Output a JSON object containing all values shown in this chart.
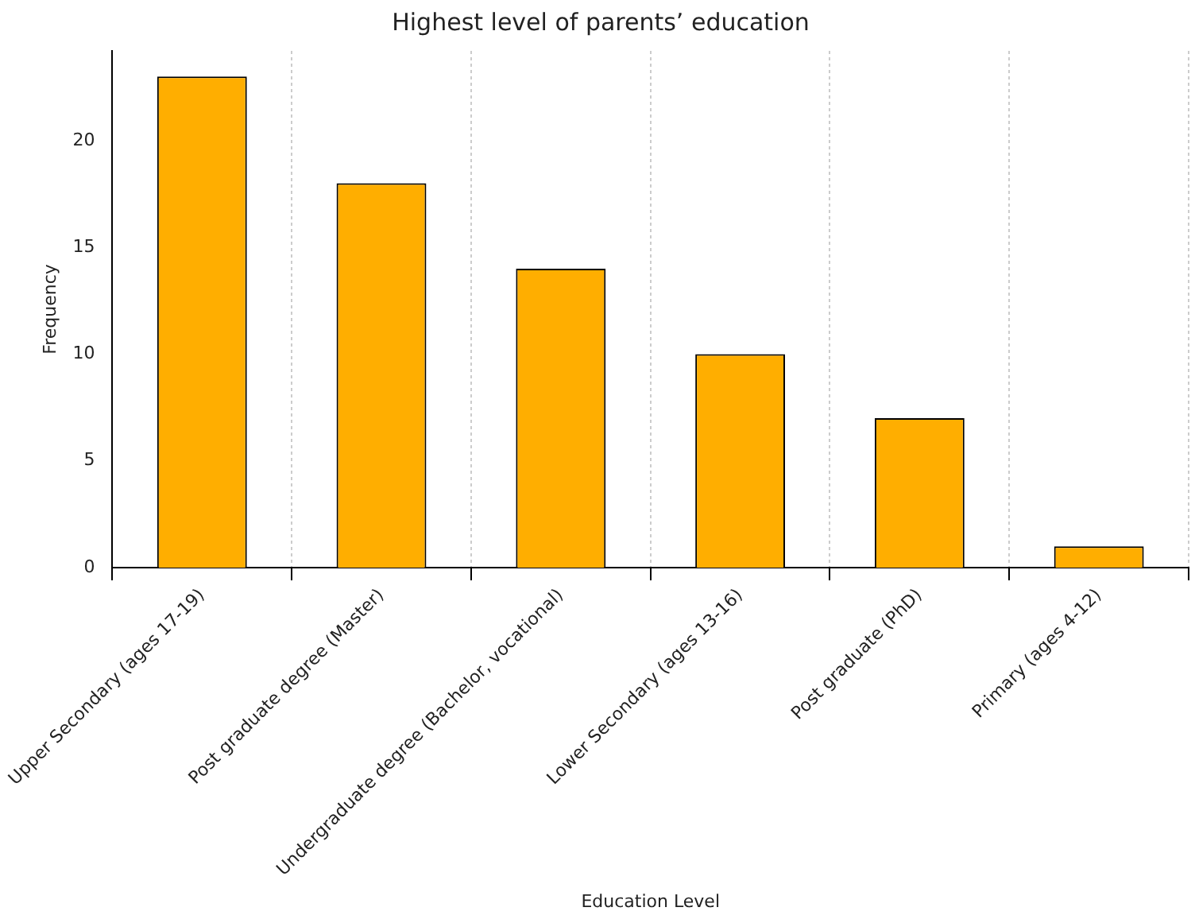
{
  "chart_data": {
    "type": "bar",
    "title": "Highest level of parents’ education",
    "xlabel": "Education Level",
    "ylabel": "Frequency",
    "categories": [
      "Upper Secondary (ages 17-19)",
      "Post graduate degree (Master)",
      "Undergraduate degree (Bachelor, vocational)",
      "Lower Secondary (ages 13-16)",
      "Post graduate (PhD)",
      "Primary (ages 4-12)"
    ],
    "values": [
      23,
      18,
      14,
      10,
      7,
      1
    ],
    "color": "#ffae00",
    "ylim": [
      0,
      24.2
    ],
    "yticks": [
      0,
      5,
      10,
      15,
      20
    ],
    "grid": "x",
    "legend": false
  }
}
